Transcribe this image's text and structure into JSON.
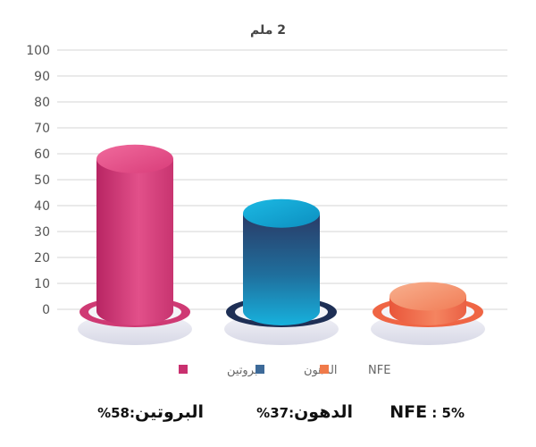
{
  "chart_data": {
    "type": "bar",
    "title": "2 ملم",
    "categories": [
      "البروتين",
      "الدهون",
      "NFE"
    ],
    "values": [
      58,
      37,
      5
    ],
    "ylim": [
      0,
      100
    ],
    "yticks": [
      0,
      10,
      20,
      30,
      40,
      50,
      60,
      70,
      80,
      90,
      100
    ],
    "grid": true,
    "legend": {
      "position": "bottom",
      "entries": [
        {
          "label": "البروتين",
          "color": "#c9306f"
        },
        {
          "label": "الدهون",
          "color": "#3d6a99"
        },
        {
          "label": "NFE",
          "color": "#f07a4a"
        }
      ]
    },
    "colors": {
      "protein_top": "#e84d86",
      "protein_body": "#d6427a",
      "fat_top": "#12a7d4",
      "fat_body_top": "#2b3f6c",
      "fat_body_bottom": "#15a9d8",
      "nfe_top": "#f6a37c",
      "nfe_body": "#ee6a47"
    }
  },
  "summary": [
    {
      "label": "البروتين",
      "separator": ":",
      "percent": "58%"
    },
    {
      "label": "الدهون",
      "separator": ":",
      "percent": "37%"
    },
    {
      "label": "NFE",
      "separator": " : ",
      "percent": "5%"
    }
  ]
}
